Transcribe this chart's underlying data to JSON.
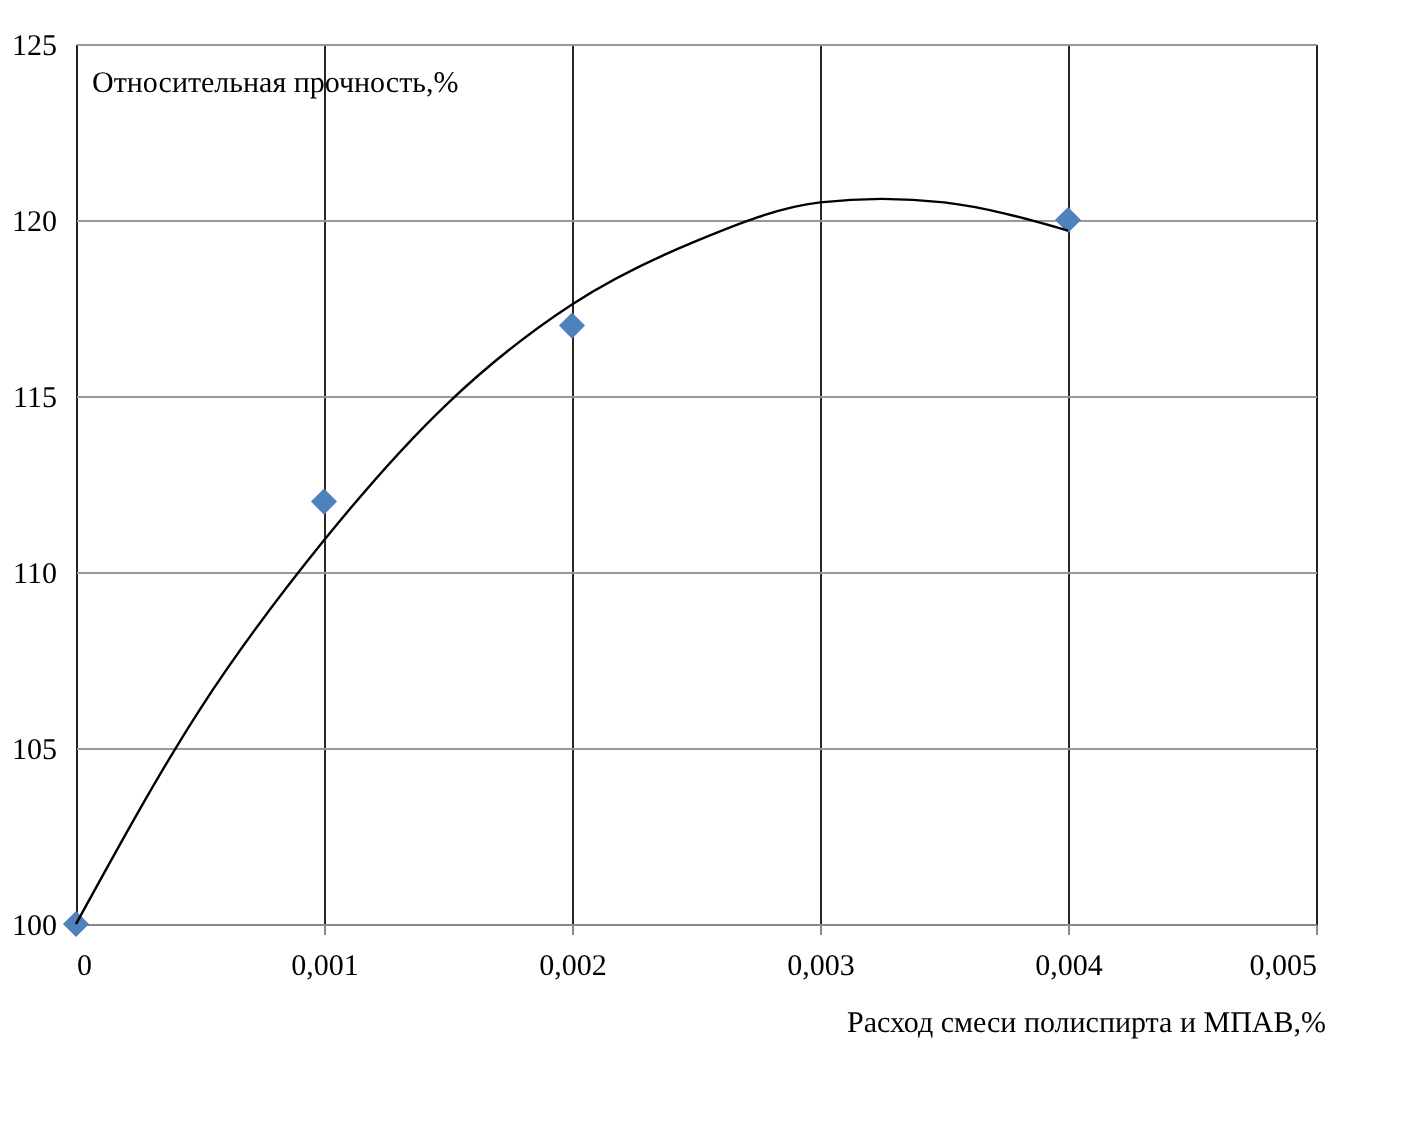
{
  "chart_data": {
    "type": "scatter",
    "ylabel": "Относительная прочность,%",
    "xlabel": "Расход смеси полиспирта и МПАВ,%",
    "xlim": [
      0,
      0.005
    ],
    "xticks": [
      {
        "value": 0,
        "label": "0"
      },
      {
        "value": 0.001,
        "label": "0,001"
      },
      {
        "value": 0.002,
        "label": "0,002"
      },
      {
        "value": 0.003,
        "label": "0,003"
      },
      {
        "value": 0.004,
        "label": "0,004"
      },
      {
        "value": 0.005,
        "label": "0,005"
      }
    ],
    "ylim": [
      100,
      125
    ],
    "yticks": [
      100,
      105,
      110,
      115,
      120,
      125
    ],
    "grid": true,
    "series": [
      {
        "color": "#4f81bd",
        "marker": "diamond",
        "x": [
          0,
          0.001,
          0.002,
          0.004
        ],
        "values": [
          100,
          112,
          117,
          120
        ]
      },
      {
        "type": "line",
        "color": "#000000",
        "marker": "none",
        "x": [
          0,
          0.0005,
          0.001,
          0.0015,
          0.002,
          0.0025,
          0.003,
          0.00325,
          0.0035,
          0.004
        ],
        "values": [
          100.0,
          106.1,
          110.9,
          114.8,
          117.6,
          119.4,
          120.5,
          120.6,
          120.5,
          119.7
        ]
      }
    ]
  }
}
